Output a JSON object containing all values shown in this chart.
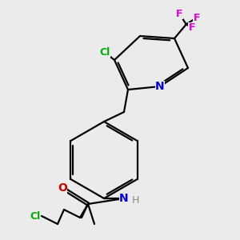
{
  "bg_color": "#ebebeb",
  "bond_color": "#000000",
  "N_color": "#0000dd",
  "O_color": "#cc0000",
  "Cl_color": "#00aa00",
  "F_color": "#dd00dd",
  "H_color": "#888888",
  "lw": 1.6,
  "dbo": 0.07,
  "xlim": [
    0.0,
    6.5
  ],
  "ylim": [
    0.0,
    6.5
  ],
  "figsize": [
    3.0,
    3.0
  ],
  "dpi": 100
}
